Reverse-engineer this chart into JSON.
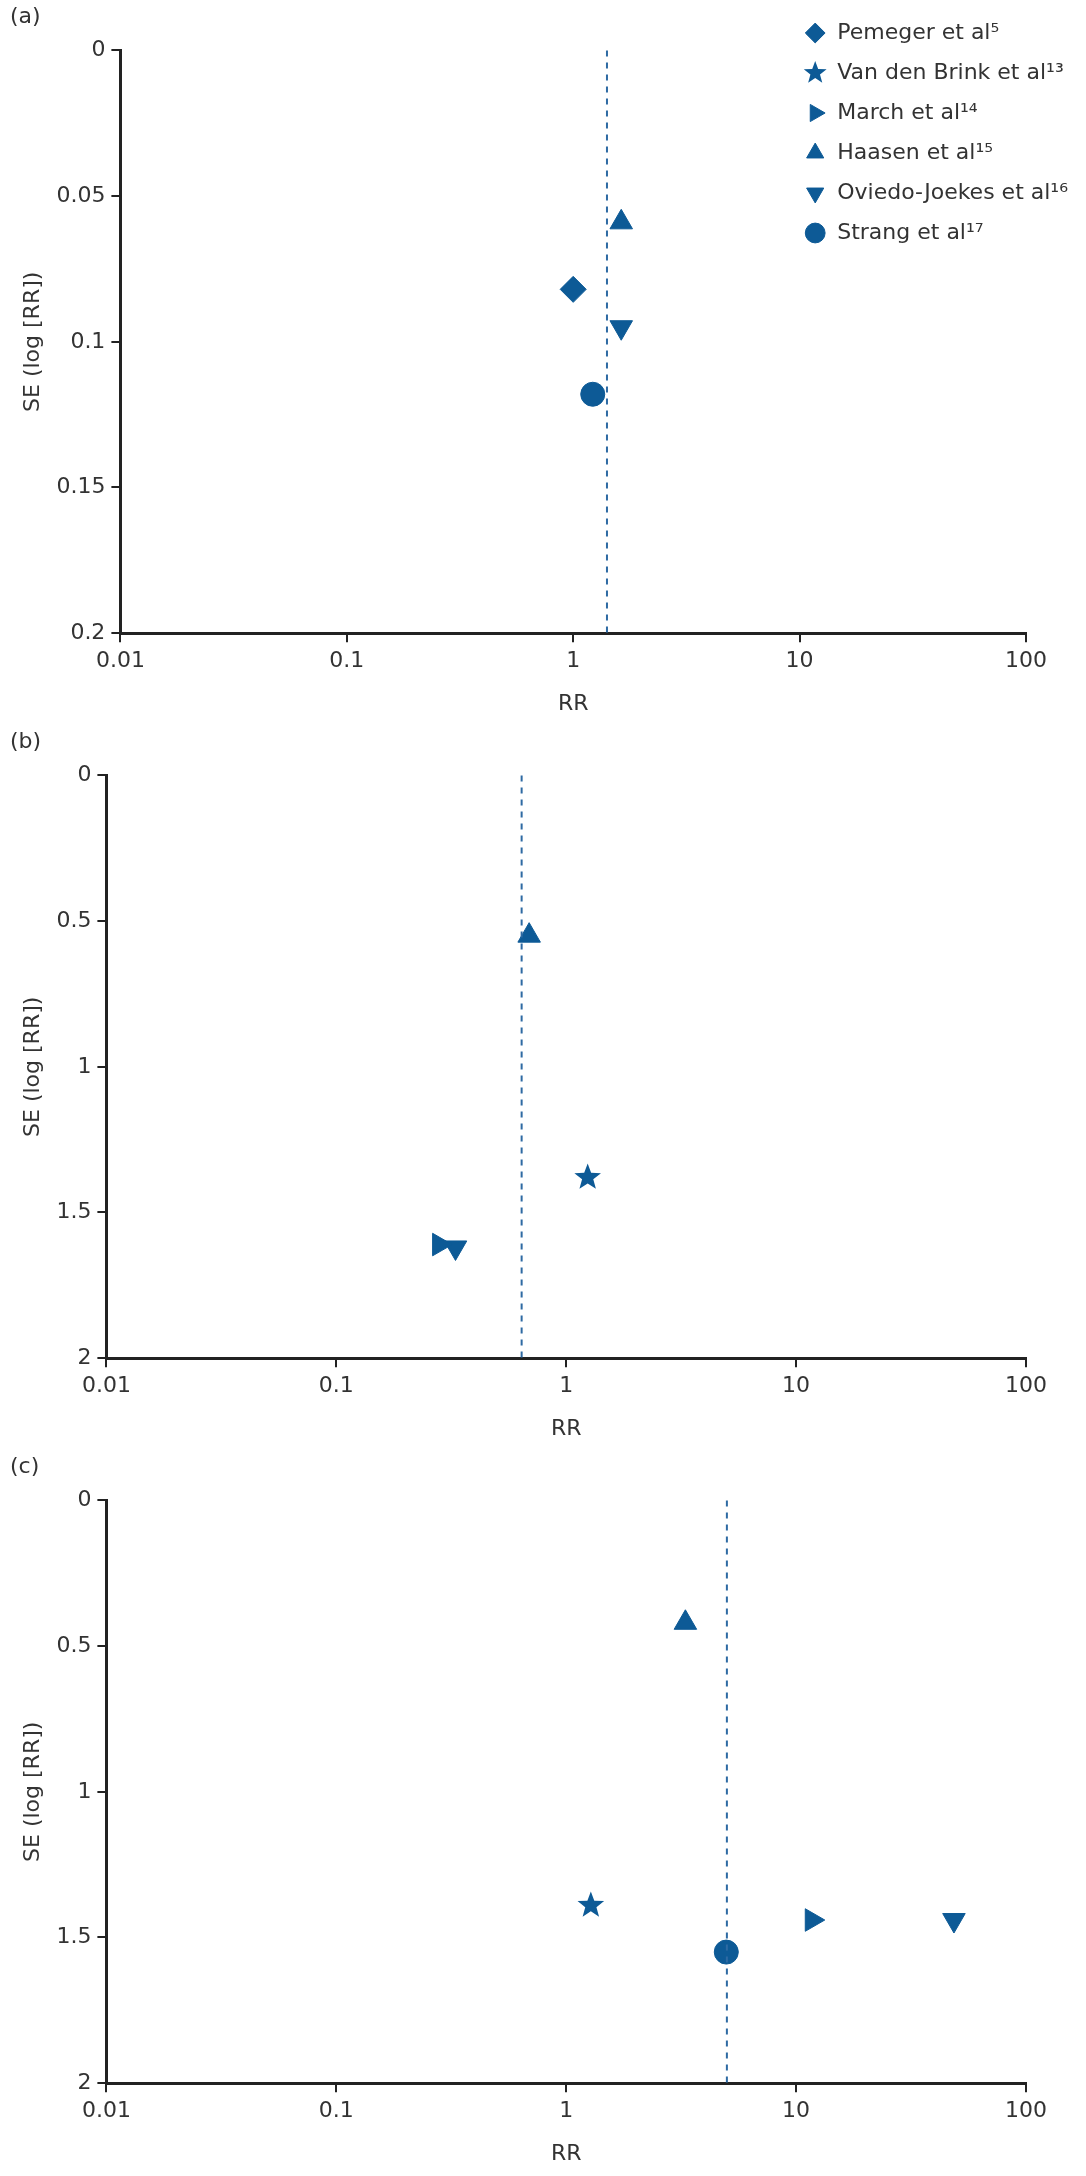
{
  "chart_data": [
    {
      "type": "scatter",
      "title": "(a)",
      "xlabel": "RR",
      "ylabel": "SE (log [RR])",
      "log": "x",
      "xlim": [
        0.01,
        100
      ],
      "xticks": [
        0.01,
        0.1,
        1,
        10,
        100
      ],
      "ylim": [
        0.2,
        0
      ],
      "yticks": [
        0,
        0.05,
        0.1,
        0.15,
        0.2
      ],
      "grid": false,
      "legend": "top right",
      "ref_lines": [
        {
          "axis": "x",
          "value": 1.41,
          "color": "#2e6aa3",
          "line_style": "dashed"
        }
      ],
      "series": [
        {
          "name": "Pemeger et al⁵",
          "color": "#0d5a96",
          "marker": "diamond",
          "x": [
            1.0
          ],
          "values": [
            0.082
          ]
        },
        {
          "name": "Van den Brink et al¹³",
          "color": "#0d5a96",
          "marker": "star",
          "x": [
            null
          ],
          "values": [
            null
          ]
        },
        {
          "name": "March et al¹⁴",
          "color": "#0d5a96",
          "marker": "triangle-right",
          "x": [
            null
          ],
          "values": [
            null
          ]
        },
        {
          "name": "Haasen et al¹⁵",
          "color": "#0d5a96",
          "marker": "triangle",
          "x": [
            1.63
          ],
          "values": [
            0.059
          ]
        },
        {
          "name": "Oviedo-Joekes et al¹⁶",
          "color": "#0d5a96",
          "marker": "triangle-down",
          "x": [
            1.63
          ],
          "values": [
            0.095
          ]
        },
        {
          "name": "Strang et al¹⁷",
          "color": "#0d5a96",
          "marker": "circle",
          "x": [
            1.22
          ],
          "values": [
            0.118
          ]
        }
      ]
    },
    {
      "type": "scatter",
      "title": "(b)",
      "xlabel": "RR",
      "ylabel": "SE (log [RR])",
      "log": "x",
      "xlim": [
        0.01,
        100
      ],
      "xticks": [
        0.01,
        0.1,
        1,
        10,
        100
      ],
      "ylim": [
        2,
        0
      ],
      "yticks": [
        0,
        0.5,
        1,
        1.5,
        2
      ],
      "grid": false,
      "ref_lines": [
        {
          "axis": "x",
          "value": 0.64,
          "color": "#2e6aa3",
          "line_style": "dashed"
        }
      ],
      "series": [
        {
          "color": "#0d5a96",
          "marker": "star",
          "x": [
            1.24
          ],
          "values": [
            1.38
          ]
        },
        {
          "color": "#0d5a96",
          "marker": "triangle-right",
          "x": [
            0.28
          ],
          "values": [
            1.61
          ]
        },
        {
          "color": "#0d5a96",
          "marker": "triangle",
          "x": [
            0.69
          ],
          "values": [
            0.55
          ]
        },
        {
          "color": "#0d5a96",
          "marker": "triangle-down",
          "x": [
            0.33
          ],
          "values": [
            1.62
          ]
        }
      ]
    },
    {
      "type": "scatter",
      "title": "(c)",
      "xlabel": "RR",
      "ylabel": "SE (log [RR])",
      "log": "x",
      "xlim": [
        0.01,
        100
      ],
      "xticks": [
        0.01,
        0.1,
        1,
        10,
        100
      ],
      "ylim": [
        2,
        0
      ],
      "yticks": [
        0,
        0.5,
        1,
        1.5,
        2
      ],
      "grid": false,
      "ref_lines": [
        {
          "axis": "x",
          "value": 5.0,
          "color": "#2e6aa3",
          "line_style": "dashed"
        }
      ],
      "series": [
        {
          "color": "#0d5a96",
          "marker": "star",
          "x": [
            1.28
          ],
          "values": [
            1.39
          ]
        },
        {
          "color": "#0d5a96",
          "marker": "triangle-right",
          "x": [
            11.7
          ],
          "values": [
            1.44
          ]
        },
        {
          "color": "#0d5a96",
          "marker": "triangle",
          "x": [
            3.3
          ],
          "values": [
            0.42
          ]
        },
        {
          "color": "#0d5a96",
          "marker": "triangle-down",
          "x": [
            48.6
          ],
          "values": [
            1.44
          ]
        },
        {
          "color": "#0d5a96",
          "marker": "circle",
          "x": [
            4.97
          ],
          "values": [
            1.55
          ]
        }
      ]
    }
  ]
}
